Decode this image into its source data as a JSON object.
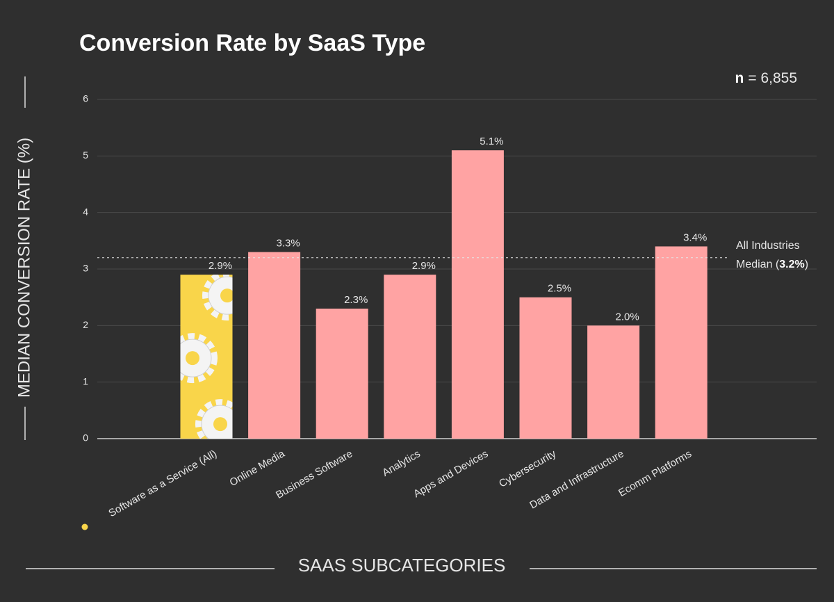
{
  "chart_data": {
    "type": "bar",
    "title": "Conversion Rate by SaaS Type",
    "n_label": "n",
    "n_text": "= 6,855",
    "ylabel": "MEDIAN CONVERSION RATE (%)",
    "xlabel": "SAAS SUBCATEGORIES",
    "categories": [
      "Software as a Service (All)",
      "Online Media",
      "Business Software",
      "Analytics",
      "Apps and Devices",
      "Cybersecurity",
      "Data and Infrastructure",
      "Ecomm Platforms"
    ],
    "values": [
      2.9,
      3.3,
      2.3,
      2.9,
      5.1,
      2.5,
      2.0,
      3.4
    ],
    "value_labels": [
      "2.9%",
      "3.3%",
      "2.3%",
      "2.9%",
      "5.1%",
      "2.5%",
      "2.0%",
      "3.4%"
    ],
    "colors": [
      "#f9d54a",
      "#ffa3a3",
      "#ffa3a3",
      "#ffa3a3",
      "#ffa3a3",
      "#ffa3a3",
      "#ffa3a3",
      "#ffa3a3"
    ],
    "ylim": [
      0,
      6
    ],
    "yticks": [
      0,
      1,
      2,
      3,
      4,
      5,
      6
    ],
    "grid": true,
    "reference": {
      "value": 3.2,
      "line1": "All Industries",
      "line2_prefix": "Median (",
      "line2_bold": "3.2%",
      "line2_suffix": ")"
    }
  }
}
